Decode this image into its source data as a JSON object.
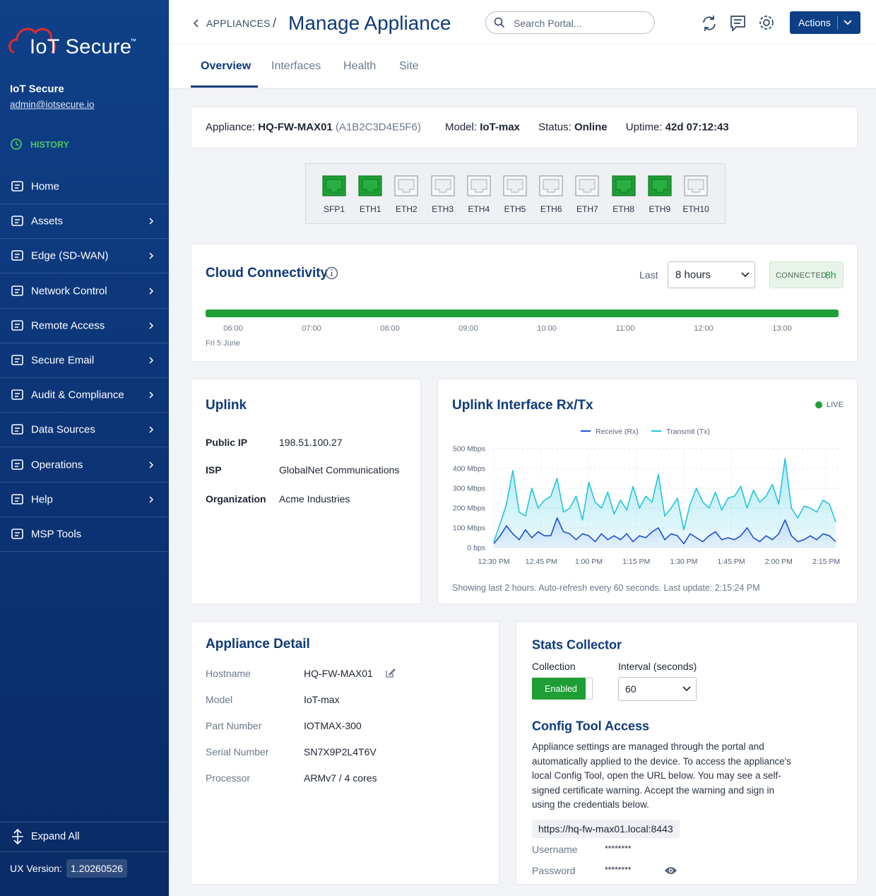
{
  "sidebar": {
    "logo": "IoT Secure",
    "logo_tm": "™",
    "user_name": "IoT Secure",
    "user_email": "admin@iotsecure.io",
    "history": "HISTORY",
    "nav": [
      {
        "label": "Home",
        "expandable": false
      },
      {
        "label": "Assets",
        "expandable": true
      },
      {
        "label": "Edge (SD-WAN)",
        "expandable": true
      },
      {
        "label": "Network Control",
        "expandable": true
      },
      {
        "label": "Remote Access",
        "expandable": true
      },
      {
        "label": "Secure Email",
        "expandable": true
      },
      {
        "label": "Audit & Compliance",
        "expandable": true
      },
      {
        "label": "Data Sources",
        "expandable": true
      },
      {
        "label": "Operations",
        "expandable": true
      },
      {
        "label": "Help",
        "expandable": true
      },
      {
        "label": "MSP Tools",
        "expandable": false
      }
    ],
    "expand_all": "Expand All",
    "ux_version_label": "UX Version:",
    "ux_version": "1.20260526"
  },
  "header": {
    "breadcrumb": "APPLIANCES",
    "separator": "/",
    "title": "Manage Appliance",
    "search_placeholder": "Search Portal...",
    "actions": "Actions"
  },
  "tabs": [
    "Overview",
    "Interfaces",
    "Health",
    "Site"
  ],
  "summary": {
    "appliance_label": "Appliance:",
    "appliance": "HQ-FW-MAX01",
    "appliance_id": "(A1B2C3D4E5F6)",
    "model_label": "Model:",
    "model": "IoT-max",
    "status_label": "Status:",
    "status": "Online",
    "uptime_label": "Uptime:",
    "uptime": "42d 07:12:43"
  },
  "ports": [
    {
      "label": "SFP1",
      "connected": true
    },
    {
      "label": "ETH1",
      "connected": true
    },
    {
      "label": "ETH2",
      "connected": false
    },
    {
      "label": "ETH3",
      "connected": false
    },
    {
      "label": "ETH4",
      "connected": false
    },
    {
      "label": "ETH5",
      "connected": false
    },
    {
      "label": "ETH6",
      "connected": false
    },
    {
      "label": "ETH7",
      "connected": false
    },
    {
      "label": "ETH8",
      "connected": true
    },
    {
      "label": "ETH9",
      "connected": true
    },
    {
      "label": "ETH10",
      "connected": false
    }
  ],
  "cloud": {
    "title": "Cloud Connectivity",
    "last_label": "Last",
    "range": "8 hours",
    "status": "CONNECTED",
    "status_duration": "8h",
    "times": [
      "06:00",
      "07:00",
      "08:00",
      "09:00",
      "10:00",
      "11:00",
      "12:00",
      "13:00"
    ],
    "date": "Fri 5 June"
  },
  "uplink": {
    "title": "Uplink",
    "rows": [
      [
        "Public IP",
        "198.51.100.27"
      ],
      [
        "ISP",
        "GlobalNet Communications"
      ],
      [
        "Organization",
        "Acme Industries"
      ]
    ]
  },
  "uplink_chart": {
    "type": "line",
    "title": "Uplink Interface Rx/Tx",
    "live": "LIVE",
    "x": [
      0,
      2,
      4,
      6,
      8,
      10,
      12,
      14,
      16,
      18,
      20,
      22,
      24,
      26,
      28,
      30,
      32,
      34,
      36,
      38,
      40,
      42,
      44,
      46,
      48,
      50,
      52,
      54,
      56,
      58,
      60,
      62,
      64,
      66,
      68,
      70,
      72,
      74,
      76,
      78,
      80,
      82,
      84,
      86,
      88,
      90,
      92,
      94,
      96,
      98,
      100,
      102,
      104,
      106,
      108
    ],
    "xlim": [
      0,
      108
    ],
    "xticks": [
      {
        "value": 0,
        "label": "12:30 PM"
      },
      {
        "value": 15,
        "label": "12:45 PM"
      },
      {
        "value": 30,
        "label": "1:00 PM"
      },
      {
        "value": 45,
        "label": "1:15 PM"
      },
      {
        "value": 60,
        "label": "1:30 PM"
      },
      {
        "value": 75,
        "label": "1:45 PM"
      },
      {
        "value": 90,
        "label": "2:00 PM"
      },
      {
        "value": 105,
        "label": "2:15 PM"
      }
    ],
    "ylim": [
      0,
      500
    ],
    "yticks": [
      {
        "value": 0,
        "label": "0 bps"
      },
      {
        "value": 100,
        "label": "100 Mbps"
      },
      {
        "value": 200,
        "label": "200 Mbps"
      },
      {
        "value": 300,
        "label": "300 Mbps"
      },
      {
        "value": 400,
        "label": "400 Mbps"
      },
      {
        "value": 500,
        "label": "500 Mbps"
      }
    ],
    "grid": true,
    "series": [
      {
        "name": "Receive (Rx)",
        "color": "#1f4fd6",
        "values": [
          20,
          60,
          110,
          70,
          40,
          90,
          50,
          80,
          60,
          60,
          150,
          80,
          70,
          40,
          70,
          60,
          30,
          70,
          40,
          60,
          40,
          70,
          30,
          60,
          50,
          80,
          100,
          40,
          70,
          60,
          20,
          70,
          50,
          30,
          60,
          80,
          40,
          50,
          40,
          60,
          100,
          50,
          30,
          60,
          40,
          70,
          140,
          60,
          30,
          40,
          60,
          40,
          70,
          60,
          30
        ]
      },
      {
        "name": "Transmit (Tx)",
        "color": "#22c4e0",
        "values": [
          30,
          120,
          220,
          390,
          180,
          160,
          300,
          200,
          240,
          260,
          350,
          180,
          200,
          260,
          140,
          330,
          230,
          200,
          280,
          170,
          240,
          190,
          310,
          200,
          260,
          230,
          370,
          160,
          200,
          250,
          90,
          220,
          300,
          230,
          200,
          280,
          190,
          250,
          260,
          310,
          200,
          290,
          230,
          260,
          320,
          220,
          450,
          200,
          150,
          210,
          200,
          180,
          240,
          220,
          130
        ]
      }
    ],
    "footnote": "Showing last 2 hours. Auto-refresh every 60 seconds. Last update: 2:15:24 PM"
  },
  "appliance_detail": {
    "title": "Appliance Detail",
    "rows": [
      [
        "Hostname",
        "HQ-FW-MAX01"
      ],
      [
        "Model",
        "IoT-max"
      ],
      [
        "Part Number",
        "IOTMAX-300"
      ],
      [
        "Serial Number",
        "SN7X9P2L4T6V"
      ],
      [
        "Processor",
        "ARMv7 / 4 cores"
      ]
    ]
  },
  "stats_collector": {
    "title": "Stats Collector",
    "collection_label": "Collection",
    "interval_label": "Interval (seconds)",
    "collection": "Enabled",
    "interval": "60"
  },
  "config_tool": {
    "title": "Config Tool Access",
    "description": "Appliance settings are managed through the portal and automatically applied to the device. To access the appliance's local Config Tool, open the URL below. You may see a self-signed certificate warning. Accept the warning and sign in using the credentials below.",
    "url": "https://hq-fw-max01.local:8443",
    "username_label": "Username",
    "username": "********",
    "password_label": "Password",
    "password": "********"
  }
}
